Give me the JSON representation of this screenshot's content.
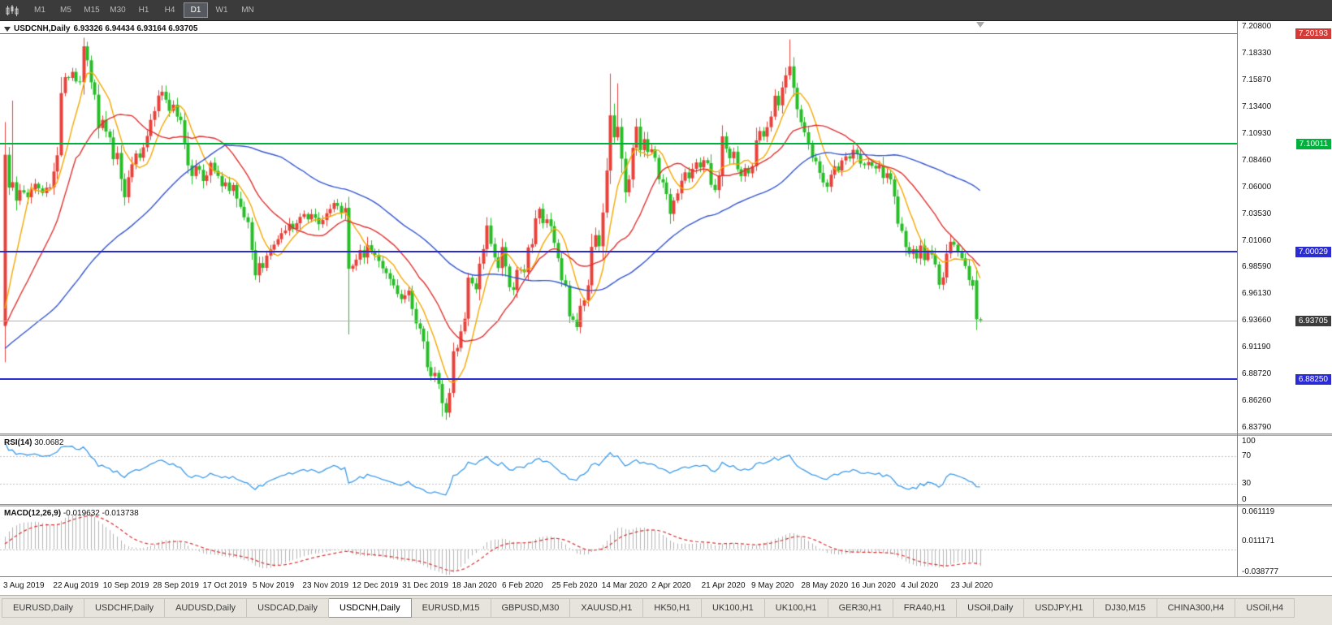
{
  "toolbar": {
    "timeframes": [
      {
        "label": "M1",
        "active": false
      },
      {
        "label": "M5",
        "active": false
      },
      {
        "label": "M15",
        "active": false
      },
      {
        "label": "M30",
        "active": false
      },
      {
        "label": "H1",
        "active": false
      },
      {
        "label": "H4",
        "active": false
      },
      {
        "label": "D1",
        "active": true
      },
      {
        "label": "W1",
        "active": false
      },
      {
        "label": "MN",
        "active": false
      }
    ]
  },
  "chart": {
    "symbol": "USDCNH,Daily",
    "ohlc": "6.93326 6.94434 6.93164 6.93705",
    "price_axis": [
      "7.20800",
      "7.18330",
      "7.15870",
      "7.13400",
      "7.10930",
      "7.08460",
      "7.06000",
      "7.03530",
      "7.01060",
      "6.98590",
      "6.96130",
      "6.93660",
      "6.91190",
      "6.88720",
      "6.86260",
      "6.83790"
    ],
    "hlines": [
      {
        "value": "7.20193",
        "color": "#d43a36",
        "thickness": 1
      },
      {
        "value": "7.10011",
        "color": "#00b23c",
        "thickness": 2
      },
      {
        "value": "7.00029",
        "color": "#2b2bd4",
        "thickness": 2
      },
      {
        "value": "6.88250",
        "color": "#2b2bd4",
        "thickness": 2
      }
    ],
    "bid": {
      "value": "6.93705",
      "tag_color": "#3c3c3c",
      "line_color": "#b4b4b4"
    },
    "dates": [
      "3 Aug 2019",
      "22 Aug 2019",
      "10 Sep 2019",
      "28 Sep 2019",
      "17 Oct 2019",
      "5 Nov 2019",
      "23 Nov 2019",
      "12 Dec 2019",
      "31 Dec 2019",
      "18 Jan 2020",
      "6 Feb 2020",
      "25 Feb 2020",
      "14 Mar 2020",
      "2 Apr 2020",
      "21 Apr 2020",
      "9 May 2020",
      "28 May 2020",
      "16 Jun 2020",
      "4 Jul 2020",
      "23 Jul 2020"
    ]
  },
  "rsi": {
    "name": "RSI(14)",
    "value": "30.0682",
    "axis": [
      "100",
      "70",
      "30",
      "0"
    ],
    "levels": [
      70,
      30
    ],
    "color": "#3d9be9"
  },
  "macd": {
    "name": "MACD(12,26,9)",
    "value1": "-0.019632",
    "value2": "-0.013738",
    "axis": [
      "0.061119",
      "0.011171",
      "-0.038777"
    ],
    "histogram_color": "#b3b3b3",
    "signal_color": "#dc3030"
  },
  "tabs": [
    {
      "label": "EURUSD,Daily",
      "active": false
    },
    {
      "label": "USDCHF,Daily",
      "active": false
    },
    {
      "label": "AUDUSD,Daily",
      "active": false
    },
    {
      "label": "USDCAD,Daily",
      "active": false
    },
    {
      "label": "USDCNH,Daily",
      "active": true
    },
    {
      "label": "EURUSD,M15",
      "active": false
    },
    {
      "label": "GBPUSD,M30",
      "active": false
    },
    {
      "label": "XAUUSD,H1",
      "active": false
    },
    {
      "label": "HK50,H1",
      "active": false
    },
    {
      "label": "UK100,H1",
      "active": false
    },
    {
      "label": "UK100,H1",
      "active": false
    },
    {
      "label": "GER30,H1",
      "active": false
    },
    {
      "label": "FRA40,H1",
      "active": false
    },
    {
      "label": "USOil,Daily",
      "active": false
    },
    {
      "label": "USDJPY,H1",
      "active": false
    },
    {
      "label": "DJ30,M15",
      "active": false
    },
    {
      "label": "CHINA300,H4",
      "active": false
    },
    {
      "label": "USOil,H4",
      "active": false
    }
  ],
  "chart_data": {
    "type": "candlestick",
    "symbol": "USDCNH",
    "period": "Daily",
    "y_range": [
      6.8325,
      7.2135
    ],
    "bars_total": 262,
    "open_first": 6.932,
    "up_color": "#e8403a",
    "down_color": "#27bd27",
    "ma": [
      {
        "period": 8,
        "color": "#f5a800"
      },
      {
        "period": 20,
        "color": "#e03131"
      },
      {
        "period": 60,
        "color": "#3355d0"
      }
    ],
    "rsi_period": 14,
    "macd_params": [
      12,
      26,
      9
    ],
    "anchors": [
      [
        0,
        7.09
      ],
      [
        1,
        7.058
      ],
      [
        2,
        7.066
      ],
      [
        3,
        7.047
      ],
      [
        4,
        7.057
      ],
      [
        6,
        7.051
      ],
      [
        8,
        7.062
      ],
      [
        10,
        7.056
      ],
      [
        12,
        7.06
      ],
      [
        14,
        7.09
      ],
      [
        15,
        7.148
      ],
      [
        16,
        7.16
      ],
      [
        18,
        7.165
      ],
      [
        19,
        7.159
      ],
      [
        20,
        7.156
      ],
      [
        21,
        7.19
      ],
      [
        22,
        7.179
      ],
      [
        23,
        7.156
      ],
      [
        24,
        7.145
      ],
      [
        25,
        7.116
      ],
      [
        26,
        7.121
      ],
      [
        27,
        7.111
      ],
      [
        28,
        7.106
      ],
      [
        29,
        7.086
      ],
      [
        30,
        7.091
      ],
      [
        31,
        7.066
      ],
      [
        32,
        7.051
      ],
      [
        33,
        7.071
      ],
      [
        34,
        7.081
      ],
      [
        35,
        7.091
      ],
      [
        36,
        7.086
      ],
      [
        37,
        7.096
      ],
      [
        38,
        7.106
      ],
      [
        39,
        7.121
      ],
      [
        40,
        7.131
      ],
      [
        41,
        7.146
      ],
      [
        42,
        7.149
      ],
      [
        43,
        7.141
      ],
      [
        44,
        7.131
      ],
      [
        45,
        7.136
      ],
      [
        46,
        7.126
      ],
      [
        47,
        7.121
      ],
      [
        48,
        7.101
      ],
      [
        49,
        7.081
      ],
      [
        50,
        7.071
      ],
      [
        51,
        7.081
      ],
      [
        52,
        7.076
      ],
      [
        53,
        7.066
      ],
      [
        54,
        7.071
      ],
      [
        55,
        7.081
      ],
      [
        56,
        7.076
      ],
      [
        57,
        7.071
      ],
      [
        58,
        7.061
      ],
      [
        59,
        7.066
      ],
      [
        60,
        7.056
      ],
      [
        61,
        7.061
      ],
      [
        62,
        7.051
      ],
      [
        63,
        7.041
      ],
      [
        64,
        7.031
      ],
      [
        65,
        7.026
      ],
      [
        66,
        7.001
      ],
      [
        67,
        6.979
      ],
      [
        68,
        6.991
      ],
      [
        69,
        6.986
      ],
      [
        70,
        6.996
      ],
      [
        72,
        7.006
      ],
      [
        74,
        7.016
      ],
      [
        76,
        7.026
      ],
      [
        77,
        7.021
      ],
      [
        78,
        7.026
      ],
      [
        79,
        7.031
      ],
      [
        80,
        7.036
      ],
      [
        81,
        7.031
      ],
      [
        82,
        7.036
      ],
      [
        83,
        7.031
      ],
      [
        84,
        7.026
      ],
      [
        85,
        7.031
      ],
      [
        86,
        7.036
      ],
      [
        87,
        7.041
      ],
      [
        88,
        7.046
      ],
      [
        89,
        7.041
      ],
      [
        90,
        7.036
      ],
      [
        91,
        7.041
      ],
      [
        92,
        6.984
      ],
      [
        93,
        6.988
      ],
      [
        94,
        6.992
      ],
      [
        95,
        7.001
      ],
      [
        96,
        6.996
      ],
      [
        97,
        7.006
      ],
      [
        98,
        7.001
      ],
      [
        100,
        6.991
      ],
      [
        102,
        6.981
      ],
      [
        104,
        6.971
      ],
      [
        105,
        6.962
      ],
      [
        106,
        6.956
      ],
      [
        107,
        6.961
      ],
      [
        108,
        6.966
      ],
      [
        109,
        6.946
      ],
      [
        110,
        6.933
      ],
      [
        111,
        6.93
      ],
      [
        112,
        6.919
      ],
      [
        113,
        6.893
      ],
      [
        114,
        6.886
      ],
      [
        115,
        6.888
      ],
      [
        116,
        6.879
      ],
      [
        117,
        6.859
      ],
      [
        118,
        6.851
      ],
      [
        119,
        6.871
      ],
      [
        120,
        6.907
      ],
      [
        121,
        6.91
      ],
      [
        122,
        6.926
      ],
      [
        123,
        6.939
      ],
      [
        124,
        6.976
      ],
      [
        125,
        6.971
      ],
      [
        126,
        6.966
      ],
      [
        127,
        6.991
      ],
      [
        128,
        7.004
      ],
      [
        129,
        7.024
      ],
      [
        130,
        7.008
      ],
      [
        131,
        6.996
      ],
      [
        132,
        6.987
      ],
      [
        133,
        7.004
      ],
      [
        134,
        6.986
      ],
      [
        135,
        6.969
      ],
      [
        136,
        6.964
      ],
      [
        137,
        6.982
      ],
      [
        139,
        6.983
      ],
      [
        140,
        7.003
      ],
      [
        141,
        7.007
      ],
      [
        142,
        7.032
      ],
      [
        143,
        7.039
      ],
      [
        144,
        7.027
      ],
      [
        145,
        7.032
      ],
      [
        146,
        7.023
      ],
      [
        147,
        7.009
      ],
      [
        148,
        6.993
      ],
      [
        149,
        6.973
      ],
      [
        150,
        6.969
      ],
      [
        151,
        6.94
      ],
      [
        152,
        6.936
      ],
      [
        153,
        6.93
      ],
      [
        154,
        6.952
      ],
      [
        155,
        6.956
      ],
      [
        156,
        6.969
      ],
      [
        157,
        7.006
      ],
      [
        158,
        7.016
      ],
      [
        159,
        7.007
      ],
      [
        160,
        7.036
      ],
      [
        161,
        7.076
      ],
      [
        162,
        7.126
      ],
      [
        163,
        7.106
      ],
      [
        164,
        7.116
      ],
      [
        165,
        7.086
      ],
      [
        166,
        7.056
      ],
      [
        167,
        7.066
      ],
      [
        168,
        7.096
      ],
      [
        169,
        7.116
      ],
      [
        170,
        7.096
      ],
      [
        171,
        7.106
      ],
      [
        172,
        7.091
      ],
      [
        173,
        7.096
      ],
      [
        174,
        7.086
      ],
      [
        175,
        7.066
      ],
      [
        176,
        7.063
      ],
      [
        177,
        7.053
      ],
      [
        178,
        7.037
      ],
      [
        179,
        7.046
      ],
      [
        180,
        7.053
      ],
      [
        181,
        7.066
      ],
      [
        182,
        7.073
      ],
      [
        183,
        7.069
      ],
      [
        184,
        7.076
      ],
      [
        185,
        7.083
      ],
      [
        186,
        7.079
      ],
      [
        187,
        7.086
      ],
      [
        188,
        7.081
      ],
      [
        189,
        7.063
      ],
      [
        190,
        7.059
      ],
      [
        191,
        7.069
      ],
      [
        192,
        7.106
      ],
      [
        193,
        7.096
      ],
      [
        194,
        7.086
      ],
      [
        195,
        7.093
      ],
      [
        196,
        7.076
      ],
      [
        197,
        7.071
      ],
      [
        198,
        7.079
      ],
      [
        199,
        7.073
      ],
      [
        200,
        7.081
      ],
      [
        201,
        7.104
      ],
      [
        202,
        7.113
      ],
      [
        203,
        7.106
      ],
      [
        204,
        7.116
      ],
      [
        205,
        7.124
      ],
      [
        206,
        7.146
      ],
      [
        207,
        7.136
      ],
      [
        208,
        7.153
      ],
      [
        209,
        7.163
      ],
      [
        210,
        7.173
      ],
      [
        211,
        7.153
      ],
      [
        212,
        7.133
      ],
      [
        213,
        7.119
      ],
      [
        214,
        7.109
      ],
      [
        215,
        7.099
      ],
      [
        216,
        7.089
      ],
      [
        217,
        7.083
      ],
      [
        218,
        7.073
      ],
      [
        219,
        7.063
      ],
      [
        220,
        7.059
      ],
      [
        221,
        7.073
      ],
      [
        222,
        7.079
      ],
      [
        223,
        7.076
      ],
      [
        224,
        7.083
      ],
      [
        225,
        7.089
      ],
      [
        226,
        7.086
      ],
      [
        227,
        7.093
      ],
      [
        228,
        7.089
      ],
      [
        229,
        7.083
      ],
      [
        230,
        7.079
      ],
      [
        231,
        7.083
      ],
      [
        232,
        7.08
      ],
      [
        233,
        7.076
      ],
      [
        234,
        7.079
      ],
      [
        235,
        7.069
      ],
      [
        236,
        7.073
      ],
      [
        237,
        7.066
      ],
      [
        238,
        7.053
      ],
      [
        239,
        7.027
      ],
      [
        240,
        7.019
      ],
      [
        241,
        7.006
      ],
      [
        242,
        6.997
      ],
      [
        243,
        7.001
      ],
      [
        244,
        6.994
      ],
      [
        245,
        7.007
      ],
      [
        246,
        6.992
      ],
      [
        247,
        7.0
      ],
      [
        248,
        6.999
      ],
      [
        249,
        6.987
      ],
      [
        250,
        6.97
      ],
      [
        251,
        6.977
      ],
      [
        252,
        7.0
      ],
      [
        253,
        7.009
      ],
      [
        254,
        7.006
      ],
      [
        255,
        6.999
      ],
      [
        256,
        6.994
      ],
      [
        257,
        6.987
      ],
      [
        258,
        6.976
      ],
      [
        259,
        6.969
      ],
      [
        260,
        6.938
      ],
      [
        261,
        6.937
      ]
    ],
    "wicks": {
      "0": {
        "op": 6.932,
        "lo": 6.926
      },
      "2": {
        "hi": 7.14
      },
      "21": {
        "hi": 7.1965
      },
      "92": {
        "op": 7.041,
        "lo": 6.924
      },
      "117": {
        "lo": 6.848
      },
      "118": {
        "lo": 6.845
      },
      "162": {
        "hi": 7.165
      },
      "164": {
        "hi": 7.156
      },
      "210": {
        "hi": 7.1965
      },
      "260": {
        "op": 6.974,
        "lo": 6.932
      }
    },
    "preroll": {
      "bars": 60,
      "from": 6.886,
      "to": 6.93
    }
  }
}
